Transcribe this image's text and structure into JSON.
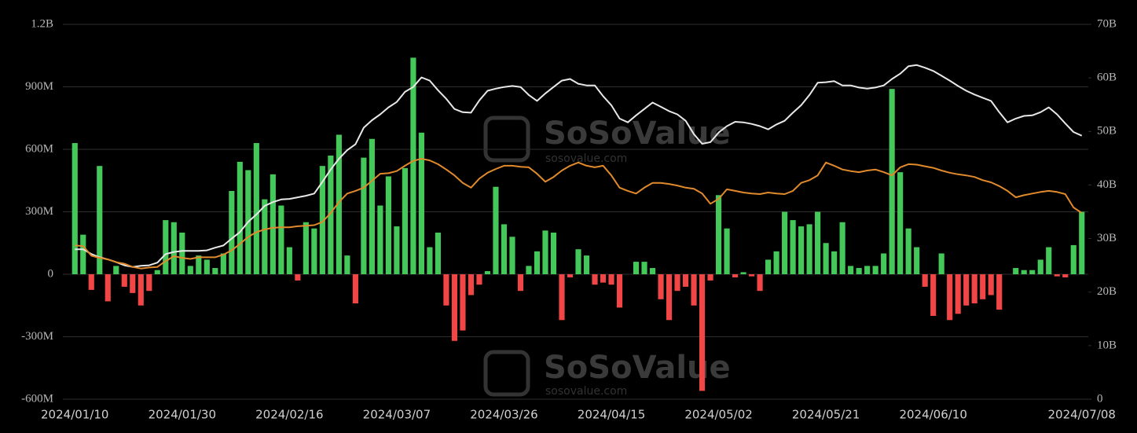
{
  "chart_data": {
    "type": "bar-line",
    "watermark": "SoSoValue",
    "watermark_url": "sosovalue.com",
    "categories": [
      "2024/01/10",
      null,
      null,
      null,
      null,
      null,
      null,
      null,
      null,
      null,
      null,
      null,
      null,
      "2024/01/30",
      null,
      null,
      null,
      null,
      null,
      null,
      null,
      null,
      null,
      null,
      null,
      null,
      "2024/02/16",
      null,
      null,
      null,
      null,
      null,
      null,
      null,
      null,
      null,
      null,
      null,
      null,
      "2024/03/07",
      null,
      null,
      null,
      null,
      null,
      null,
      null,
      null,
      null,
      null,
      null,
      null,
      "2024/03/26",
      null,
      null,
      null,
      null,
      null,
      null,
      null,
      null,
      null,
      null,
      null,
      null,
      "2024/04/15",
      null,
      null,
      null,
      null,
      null,
      null,
      null,
      null,
      null,
      null,
      null,
      null,
      "2024/05/02",
      null,
      null,
      null,
      null,
      null,
      null,
      null,
      null,
      null,
      null,
      null,
      null,
      "2024/05/21",
      null,
      null,
      null,
      null,
      null,
      null,
      null,
      null,
      null,
      null,
      null,
      null,
      "2024/06/10",
      null,
      null,
      null,
      null,
      null,
      null,
      null,
      null,
      null,
      null,
      null,
      null,
      null,
      null,
      null,
      null,
      null,
      "2024/07/08"
    ],
    "series": [
      {
        "type": "bar",
        "axis": "y",
        "color": "#45c85a",
        "negative_color": "#f24646",
        "values": [
          630,
          190,
          -75,
          520,
          -130,
          40,
          -60,
          -90,
          -150,
          -80,
          20,
          260,
          250,
          200,
          40,
          90,
          70,
          30,
          100,
          400,
          540,
          500,
          630,
          360,
          480,
          330,
          130,
          -30,
          250,
          220,
          520,
          570,
          670,
          90,
          -140,
          560,
          650,
          330,
          470,
          230,
          510,
          1040,
          680,
          130,
          200,
          -150,
          -320,
          -270,
          -100,
          -50,
          15,
          420,
          240,
          180,
          -80,
          40,
          110,
          210,
          200,
          -220,
          -15,
          120,
          90,
          -50,
          -40,
          -50,
          -160,
          0,
          60,
          60,
          30,
          -120,
          -220,
          -80,
          -60,
          -150,
          -560,
          -30,
          380,
          220,
          -15,
          10,
          -10,
          -80,
          70,
          110,
          300,
          260,
          230,
          240,
          300,
          150,
          110,
          250,
          40,
          30,
          40,
          40,
          100,
          890,
          490,
          220,
          130,
          -60,
          -200,
          100,
          -220,
          -190,
          -150,
          -140,
          -120,
          -100,
          -170,
          0,
          30,
          20,
          20,
          70,
          130,
          -10,
          -15,
          140,
          300
        ]
      },
      {
        "type": "line",
        "axis": "y2",
        "color": "#e8e8e8",
        "values": [
          28.0,
          28.0,
          27.1,
          26.5,
          26.1,
          25.6,
          25.0,
          24.7,
          24.9,
          25.0,
          25.5,
          27.1,
          27.5,
          27.7,
          27.7,
          27.7,
          27.8,
          28.3,
          28.7,
          30.0,
          31.2,
          33.1,
          34.5,
          36.1,
          36.8,
          37.3,
          37.4,
          37.7,
          38.0,
          38.4,
          40.6,
          42.9,
          44.9,
          46.5,
          47.6,
          50.7,
          52.1,
          53.2,
          54.5,
          55.5,
          57.4,
          58.3,
          60.1,
          59.5,
          57.7,
          56.1,
          54.2,
          53.6,
          53.5,
          55.8,
          57.6,
          58.0,
          58.3,
          58.5,
          58.3,
          56.8,
          55.7,
          57.1,
          58.3,
          59.5,
          59.8,
          58.9,
          58.6,
          58.6,
          56.6,
          54.9,
          52.4,
          51.7,
          53.0,
          54.2,
          55.4,
          54.6,
          53.8,
          53.2,
          52.0,
          49.5,
          47.7,
          48.0,
          49.8,
          51.0,
          51.8,
          51.7,
          51.4,
          51.0,
          50.4,
          51.3,
          52.0,
          53.5,
          54.9,
          56.8,
          59.1,
          59.2,
          59.4,
          58.6,
          58.6,
          58.2,
          58.0,
          58.2,
          58.6,
          59.8,
          60.8,
          62.2,
          62.4,
          61.9,
          61.3,
          60.4,
          59.5,
          58.5,
          57.6,
          56.9,
          56.3,
          55.7,
          53.6,
          51.7,
          52.4,
          52.9,
          53.0,
          53.6,
          54.5,
          53.2,
          51.5,
          49.9,
          49.2
        ]
      },
      {
        "type": "line",
        "axis": "y2",
        "color": "#e08a2c",
        "values": [
          28.7,
          28.6,
          26.8,
          26.4,
          26.1,
          25.6,
          25.3,
          24.7,
          24.4,
          24.6,
          24.7,
          25.8,
          26.7,
          26.4,
          26.2,
          26.5,
          26.5,
          26.5,
          27.0,
          27.8,
          29.0,
          30.3,
          31.2,
          31.7,
          32.0,
          32.1,
          32.1,
          32.3,
          32.4,
          32.5,
          33.1,
          34.8,
          36.8,
          38.4,
          38.9,
          39.5,
          40.8,
          42.1,
          42.2,
          42.6,
          43.6,
          44.5,
          44.9,
          44.6,
          43.9,
          42.9,
          41.8,
          40.4,
          39.5,
          41.2,
          42.3,
          43.0,
          43.6,
          43.6,
          43.4,
          43.3,
          42.1,
          40.6,
          41.5,
          42.7,
          43.6,
          44.2,
          43.6,
          43.3,
          43.6,
          41.8,
          39.5,
          38.9,
          38.4,
          39.5,
          40.4,
          40.4,
          40.2,
          39.9,
          39.5,
          39.3,
          38.4,
          36.5,
          37.4,
          39.2,
          38.9,
          38.6,
          38.4,
          38.3,
          38.6,
          38.4,
          38.3,
          38.9,
          40.4,
          40.9,
          41.8,
          44.2,
          43.6,
          42.9,
          42.6,
          42.4,
          42.7,
          42.9,
          42.4,
          41.8,
          43.3,
          43.9,
          43.8,
          43.5,
          43.2,
          42.7,
          42.3,
          42.0,
          41.8,
          41.5,
          40.9,
          40.5,
          39.8,
          38.9,
          37.7,
          38.1,
          38.4,
          38.7,
          38.9,
          38.7,
          38.3,
          35.8,
          34.8
        ]
      }
    ],
    "ylim": [
      -600,
      1200
    ],
    "yticks": [
      {
        "value": -600,
        "label": "-600M"
      },
      {
        "value": -300,
        "label": "-300M"
      },
      0,
      {
        "value": 300,
        "label": "300M"
      },
      {
        "value": 600,
        "label": "600M"
      },
      {
        "value": 900,
        "label": "900M"
      },
      {
        "value": 1200,
        "label": "1.2B"
      }
    ],
    "y2lim": [
      0,
      70
    ],
    "y2ticks": [
      0,
      {
        "value": 10,
        "label": "10B"
      },
      {
        "value": 20,
        "label": "20B"
      },
      {
        "value": 30,
        "label": "30B"
      },
      {
        "value": 40,
        "label": "40B"
      },
      {
        "value": 50,
        "label": "50B"
      },
      {
        "value": 60,
        "label": "60B"
      },
      {
        "value": 70,
        "label": "70B"
      }
    ],
    "grid": true
  }
}
